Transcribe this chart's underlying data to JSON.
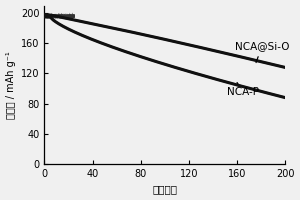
{
  "xlabel": "循环次数",
  "ylabel": "比容量 / mAh g⁻¹",
  "xlim": [
    0,
    200
  ],
  "ylim": [
    0,
    210
  ],
  "xticks": [
    0,
    40,
    80,
    120,
    160,
    200
  ],
  "yticks": [
    0,
    40,
    80,
    120,
    160,
    200
  ],
  "nca_si_o_label": "NCA@Si-O",
  "nca_p_label": "NCA-P",
  "background_color": "#f0f0f0",
  "line_color": "#111111",
  "annotation_fontsize": 7.5
}
